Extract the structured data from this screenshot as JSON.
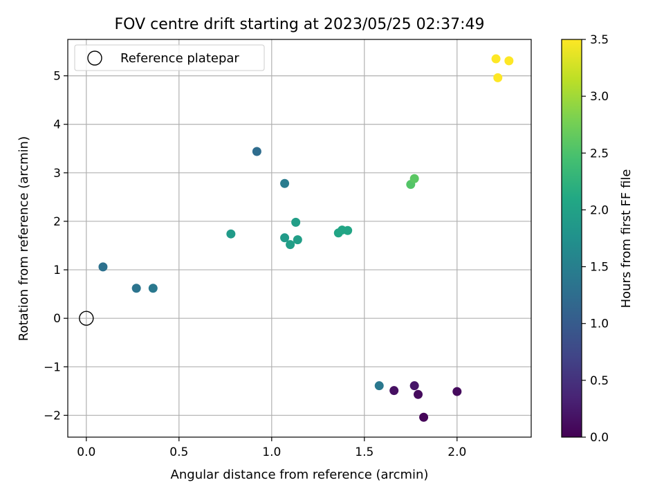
{
  "chart_data": {
    "type": "scatter",
    "title": "FOV centre drift starting at 2023/05/25 02:37:49",
    "xlabel": "Angular distance from reference (arcmin)",
    "ylabel": "Rotation from reference (arcmin)",
    "xlim": [
      -0.1,
      2.4
    ],
    "ylim": [
      -2.45,
      5.75
    ],
    "xticks": [
      0.0,
      0.5,
      1.0,
      1.5,
      2.0
    ],
    "xtick_labels": [
      "0.0",
      "0.5",
      "1.0",
      "1.5",
      "2.0"
    ],
    "yticks": [
      -2,
      -1,
      0,
      1,
      2,
      3,
      4,
      5
    ],
    "ytick_labels": [
      "−2",
      "−1",
      "0",
      "1",
      "2",
      "3",
      "4",
      "5"
    ],
    "grid": true,
    "legend": {
      "position": "top-left",
      "entries": [
        {
          "label": "Reference platepar",
          "marker": "hollow-circle",
          "x": 0.0,
          "y": 0.0
        }
      ]
    },
    "colorbar": {
      "label": "Hours from first FF file",
      "colormap": "viridis",
      "range": [
        0.0,
        3.5
      ],
      "ticks": [
        0.0,
        0.5,
        1.0,
        1.5,
        2.0,
        2.5,
        3.0,
        3.5
      ],
      "tick_labels": [
        "0.0",
        "0.5",
        "1.0",
        "1.5",
        "2.0",
        "2.5",
        "3.0",
        "3.5"
      ]
    },
    "points": [
      {
        "x": 1.66,
        "y": -1.49,
        "c": 0.15
      },
      {
        "x": 1.77,
        "y": -1.39,
        "c": 0.2
      },
      {
        "x": 1.79,
        "y": -1.57,
        "c": 0.1
      },
      {
        "x": 1.82,
        "y": -2.04,
        "c": 0.05
      },
      {
        "x": 2.0,
        "y": -1.51,
        "c": 0.1
      },
      {
        "x": 1.58,
        "y": -1.39,
        "c": 1.4
      },
      {
        "x": 0.09,
        "y": 1.06,
        "c": 1.3
      },
      {
        "x": 0.27,
        "y": 0.62,
        "c": 1.35
      },
      {
        "x": 0.36,
        "y": 0.62,
        "c": 1.4
      },
      {
        "x": 0.92,
        "y": 3.44,
        "c": 1.25
      },
      {
        "x": 1.07,
        "y": 2.78,
        "c": 1.45
      },
      {
        "x": 0.78,
        "y": 1.74,
        "c": 1.9
      },
      {
        "x": 1.07,
        "y": 1.66,
        "c": 1.9
      },
      {
        "x": 1.1,
        "y": 1.52,
        "c": 1.95
      },
      {
        "x": 1.13,
        "y": 1.98,
        "c": 1.95
      },
      {
        "x": 1.14,
        "y": 1.62,
        "c": 1.95
      },
      {
        "x": 1.36,
        "y": 1.76,
        "c": 2.05
      },
      {
        "x": 1.38,
        "y": 1.82,
        "c": 2.05
      },
      {
        "x": 1.41,
        "y": 1.81,
        "c": 2.05
      },
      {
        "x": 1.75,
        "y": 2.76,
        "c": 2.55
      },
      {
        "x": 1.77,
        "y": 2.88,
        "c": 2.6
      },
      {
        "x": 2.21,
        "y": 5.35,
        "c": 3.5
      },
      {
        "x": 2.28,
        "y": 5.31,
        "c": 3.5
      },
      {
        "x": 2.22,
        "y": 4.96,
        "c": 3.5
      }
    ]
  }
}
